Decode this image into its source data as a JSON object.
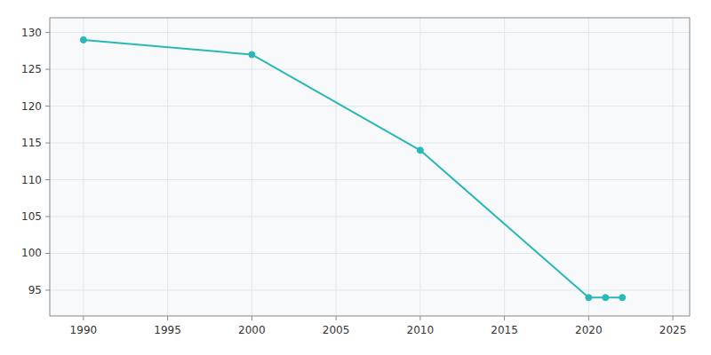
{
  "chart_data": {
    "type": "line",
    "x": [
      1990,
      2000,
      2010,
      2020,
      2021,
      2022
    ],
    "values": [
      129,
      127,
      114,
      94,
      94,
      94
    ],
    "color": "#29b8b8",
    "marker": "circle",
    "xlim": [
      1988,
      2026
    ],
    "ylim": [
      91.5,
      132
    ],
    "xticks": [
      1990,
      1995,
      2000,
      2005,
      2010,
      2015,
      2020,
      2025
    ],
    "yticks": [
      95,
      100,
      105,
      110,
      115,
      120,
      125,
      130
    ],
    "grid": true
  }
}
